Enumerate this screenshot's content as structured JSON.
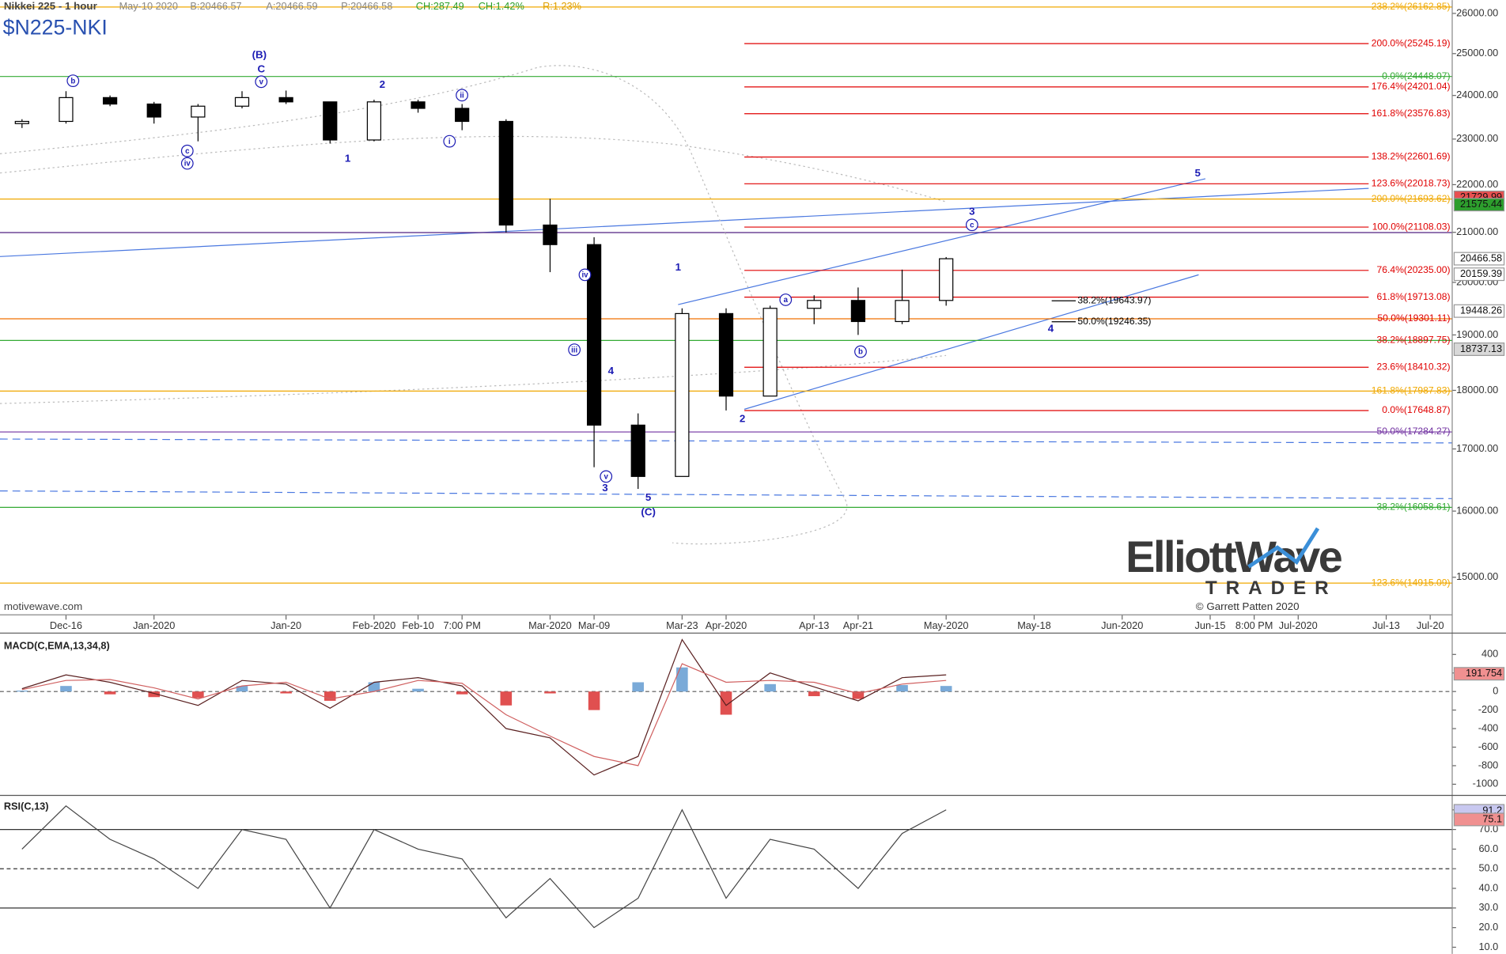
{
  "header": {
    "symbol_title": "Nikkei 225 - 1 hour",
    "date": "May-10 2020",
    "bid": "B:20466.57",
    "ask": "A:20466.59",
    "price": "P:20466.58",
    "change": "CH:287.49",
    "change_pct": "CH:1.42%",
    "range": "R:1.23%",
    "ticker": "$N225-NKI"
  },
  "footer": {
    "source": "motivewave.com",
    "logo_main": "ElliottWave",
    "logo_sub": "TRADER",
    "copyright": "© Garrett Patten 2020"
  },
  "chart_data": [
    {
      "type": "candlestick",
      "log_scale": true,
      "color": "#000000",
      "annotation_color": "#1c1cb4",
      "categories": [
        null,
        "Dec-16",
        null,
        "Jan-2020",
        null,
        null,
        "Jan-20",
        null,
        "Feb-2020",
        "Feb-10",
        "7:00 PM",
        null,
        "Mar-2020",
        "Mar-09",
        null,
        "Mar-23",
        "Apr-2020",
        null,
        "Apr-13",
        "Apr-21",
        null,
        "May-2020",
        null,
        "May-18",
        null,
        "Jun-2020",
        null,
        "Jun-15",
        "8:00 PM",
        "Jul-2020",
        null,
        "Jul-13",
        "Jul-20"
      ],
      "open": [
        23350,
        23400,
        23950,
        23800,
        23500,
        23750,
        23950,
        23850,
        22980,
        23850,
        23700,
        23400,
        21150,
        20750,
        17400,
        16550,
        19400,
        17900,
        19500,
        19650,
        19250,
        19650,
        null,
        null,
        null,
        null,
        null,
        null,
        null,
        null,
        null,
        null,
        null
      ],
      "high": [
        23450,
        24100,
        24000,
        23850,
        23800,
        24100,
        24115,
        23850,
        23900,
        23900,
        23800,
        23450,
        21700,
        20900,
        17600,
        19500,
        19500,
        19550,
        19750,
        19900,
        20250,
        20500,
        null,
        null,
        null,
        null,
        null,
        null,
        null,
        null,
        null,
        null,
        null
      ],
      "low": [
        23250,
        23350,
        23750,
        23350,
        22950,
        23700,
        23800,
        22900,
        22950,
        23600,
        23200,
        21000,
        20200,
        16700,
        16350,
        16600,
        17650,
        17950,
        19200,
        19000,
        19200,
        19550,
        null,
        null,
        null,
        null,
        null,
        null,
        null,
        null,
        null,
        null,
        null
      ],
      "close": [
        23400,
        23950,
        23800,
        23500,
        23750,
        23950,
        23850,
        22980,
        23850,
        23700,
        23400,
        21150,
        20750,
        17400,
        16550,
        19400,
        17900,
        19500,
        19650,
        19250,
        19650,
        20466,
        null,
        null,
        null,
        null,
        null,
        null,
        null,
        null,
        null,
        null,
        null
      ],
      "ylim": [
        14460,
        26340
      ],
      "yticks": [
        {
          "value": 15000,
          "label": "15000.00"
        },
        {
          "value": 16000,
          "label": "16000.00"
        },
        {
          "value": 17000,
          "label": "17000.00"
        },
        {
          "value": 18000,
          "label": "18000.00"
        },
        {
          "value": 19000,
          "label": "19000.00"
        },
        {
          "value": 20000,
          "label": "20000.00"
        },
        {
          "value": 21000,
          "label": "21000.00"
        },
        {
          "value": 22000,
          "label": "22000.00"
        },
        {
          "value": 23000,
          "label": "23000.00"
        },
        {
          "value": 24000,
          "label": "24000.00"
        },
        {
          "value": 25000,
          "label": "25000.00"
        },
        {
          "value": 26000,
          "label": "26000.00"
        }
      ],
      "levels": [
        {
          "label": "238.2%(26162.85)",
          "value": 26162.85,
          "color": "#f0a800",
          "full_width": true
        },
        {
          "label": "200.0%(25245.19)",
          "value": 25245.19,
          "color": "#e00000",
          "full_width": false
        },
        {
          "label": "0.0%(24448.07)",
          "value": 24448.07,
          "color": "#33aa33",
          "full_width": true
        },
        {
          "label": "176.4%(24201.04)",
          "value": 24201.04,
          "color": "#e00000",
          "full_width": false
        },
        {
          "label": "161.8%(23576.83)",
          "value": 23576.83,
          "color": "#e00000",
          "full_width": false
        },
        {
          "label": "138.2%(22601.69)",
          "value": 22601.69,
          "color": "#e00000",
          "full_width": false
        },
        {
          "label": "123.6%(22018.73)",
          "value": 22018.73,
          "color": "#e00000",
          "full_width": false
        },
        {
          "label": "200.0%(21693.62)",
          "value": 21693.62,
          "color": "#f0a800",
          "full_width": true
        },
        {
          "label": "100.0%(21108.03)",
          "value": 21108.03,
          "color": "#e00000",
          "full_width": false
        },
        {
          "label": "76.4%(20235.00)",
          "value": 20235.0,
          "color": "#e00000",
          "full_width": false
        },
        {
          "label": "61.8%(19713.08)",
          "value": 19713.08,
          "color": "#e00000",
          "full_width": false
        },
        {
          "label": "50.0%(19301.11)",
          "value": 19301.11,
          "color": "#f07000",
          "label_color": "#e00000",
          "full_width": true
        },
        {
          "label": "38.2%(18897.75)",
          "value": 18897.75,
          "color": "#33aa33",
          "label_color": "#e00000",
          "full_width": true
        },
        {
          "label": "23.6%(18410.32)",
          "value": 18410.32,
          "color": "#e00000",
          "full_width": false
        },
        {
          "label": "161.8%(17987.83)",
          "value": 17987.83,
          "color": "#f0a800",
          "full_width": true
        },
        {
          "label": "0.0%(17648.87)",
          "value": 17648.87,
          "color": "#e00000",
          "full_width": false
        },
        {
          "label": "50.0%(17284.27)",
          "value": 17284.27,
          "color": "#7030a0",
          "full_width": true
        },
        {
          "label": "38.2%(16058.61)",
          "value": 16058.61,
          "color": "#33aa33",
          "full_width": true
        },
        {
          "label": "123.6%(14915.09)",
          "value": 14915.09,
          "color": "#f0a800",
          "full_width": true
        }
      ],
      "retracements": [
        {
          "label": "38.2%(19643.97)",
          "value": 19643.97
        },
        {
          "label": "50.0%(19246.35)",
          "value": 19246.35
        }
      ],
      "price_badges": [
        {
          "value": 21729.99,
          "color": "#e85050"
        },
        {
          "value": 21575.44,
          "color": "#2d9e2d"
        },
        {
          "value": 20466.58,
          "color": "#ffffff"
        },
        {
          "value": 20159.39,
          "color": "#ffffff"
        },
        {
          "value": 19448.26,
          "color": "#ffffff"
        },
        {
          "value": 18737.13,
          "color": "#d8d8d8"
        }
      ],
      "wave_labels": [
        {
          "text": "b",
          "circled": true
        },
        {
          "text": "(B)",
          "circled": false
        },
        {
          "text": "C",
          "circled": false
        },
        {
          "text": "v",
          "circled": true
        },
        {
          "text": "c",
          "circled": true
        },
        {
          "text": "iv",
          "circled": true
        },
        {
          "text": "1",
          "circled": false
        },
        {
          "text": "2",
          "circled": false
        },
        {
          "text": "i",
          "circled": true
        },
        {
          "text": "ii",
          "circled": true
        },
        {
          "text": "iv",
          "circled": true
        },
        {
          "text": "iii",
          "circled": true
        },
        {
          "text": "4",
          "circled": false
        },
        {
          "text": "v",
          "circled": true
        },
        {
          "text": "3",
          "circled": false
        },
        {
          "text": "5",
          "circled": false
        },
        {
          "text": "(C)",
          "circled": false
        },
        {
          "text": "1",
          "circled": false
        },
        {
          "text": "2",
          "circled": false
        },
        {
          "text": "a",
          "circled": true
        },
        {
          "text": "b",
          "circled": true
        },
        {
          "text": "3",
          "circled": false
        },
        {
          "text": "c",
          "circled": true
        },
        {
          "text": "4",
          "circled": false
        },
        {
          "text": "5",
          "circled": false
        }
      ]
    },
    {
      "type": "macd",
      "title": "MACD(C,EMA,13,34,8)",
      "series": [
        {
          "color": "#5a2020",
          "values": [
            30,
            180,
            100,
            -20,
            -150,
            120,
            80,
            -180,
            100,
            150,
            60,
            -400,
            -500,
            -900,
            -700,
            560,
            -150,
            200,
            50,
            -100,
            150,
            180,
            null,
            null,
            null,
            null,
            null,
            null,
            null,
            null,
            null,
            null,
            null
          ]
        },
        {
          "color": "#d06060",
          "values": [
            20,
            120,
            130,
            40,
            -80,
            60,
            100,
            -80,
            0,
            120,
            90,
            -250,
            -480,
            -700,
            -800,
            300,
            100,
            120,
            100,
            -20,
            80,
            120,
            null,
            null,
            null,
            null,
            null,
            null,
            null,
            null,
            null,
            null,
            null
          ]
        }
      ],
      "histogram": {
        "positive_color": "#7aaad8",
        "negative_color": "#e05050",
        "values": [
          10,
          60,
          -30,
          -60,
          -70,
          60,
          -20,
          -100,
          100,
          30,
          -30,
          -150,
          -20,
          -200,
          100,
          260,
          -250,
          80,
          -50,
          -80,
          70,
          60,
          null,
          null,
          null,
          null,
          null,
          null,
          null,
          null,
          null,
          null,
          null
        ]
      },
      "ylim": [
        -1100,
        620
      ],
      "yticks": [
        -1000,
        -800,
        -600,
        -400,
        -200,
        0,
        200,
        400
      ],
      "badges": [
        {
          "value": 191.754,
          "color": "#f09090"
        }
      ]
    },
    {
      "type": "rsi",
      "title": "RSI(C,13)",
      "color": "#444444",
      "values": [
        60,
        82,
        65,
        55,
        40,
        70,
        65,
        30,
        70,
        60,
        55,
        25,
        45,
        20,
        35,
        80,
        35,
        65,
        60,
        40,
        68,
        80,
        null,
        null,
        null,
        null,
        null,
        null,
        null,
        null,
        null,
        null,
        null
      ],
      "ylim": [
        6.6,
        85.4
      ],
      "yticks": [
        {
          "value": 10,
          "label": "10.0"
        },
        {
          "value": 20,
          "label": "20.0"
        },
        {
          "value": 30,
          "label": "30.0"
        },
        {
          "value": 40,
          "label": "40.0"
        },
        {
          "value": 50,
          "label": "50.0"
        },
        {
          "value": 60,
          "label": "60.0"
        },
        {
          "value": 70,
          "label": "70.0"
        },
        {
          "value": 80,
          "label": "80.0"
        }
      ],
      "reference_lines": [
        {
          "value": 70,
          "dashed": false
        },
        {
          "value": 50,
          "dashed": true
        },
        {
          "value": 30,
          "dashed": false
        }
      ],
      "badges": [
        {
          "value": 91.2,
          "color": "#c8c8f0"
        },
        {
          "value": 75.1,
          "color": "#f09090"
        }
      ]
    }
  ]
}
